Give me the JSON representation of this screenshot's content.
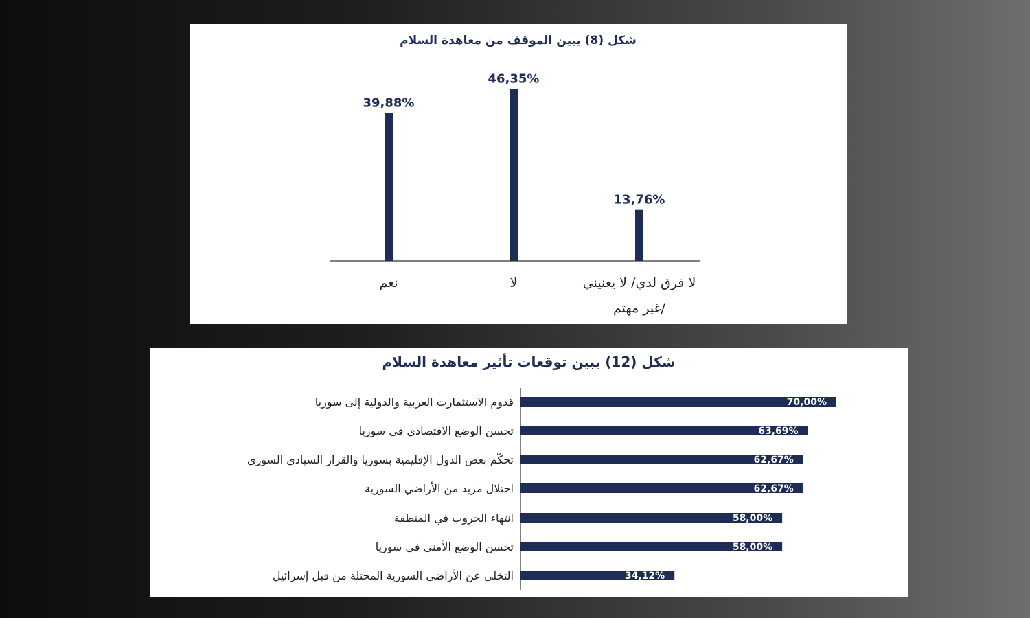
{
  "colors": {
    "bar": "#1e2d55",
    "axis": "#555555",
    "text": "#1e2d55",
    "label": "#222222",
    "barText": "#ffffff"
  },
  "chart_data": [
    {
      "type": "bar",
      "orientation": "vertical",
      "title": "شكل (8) يبين الموقف من معاهدة السلام",
      "categories": [
        "نعم",
        "لا",
        "لا فرق لدي/ لا يعنيني /غير مهتم"
      ],
      "category_label_lines": [
        [
          "نعم"
        ],
        [
          "لا"
        ],
        [
          "لا فرق لدي/ لا يعنيني",
          "/غير مهتم"
        ]
      ],
      "values": [
        39.88,
        46.35,
        13.76
      ],
      "data_labels": [
        "39,88%",
        "46,35%",
        "13,76%"
      ],
      "unit": "%",
      "ylim": [
        0,
        50
      ],
      "grid": false,
      "legend": "none"
    },
    {
      "type": "bar",
      "orientation": "horizontal",
      "title": "شكل (12) يبين توقعات تأثير معاهدة السلام",
      "categories": [
        "قدوم الاستثمارت العربية والدولية إلى سوريا",
        "تحسن الوضع الاقتصادي في سوريا",
        "تحكّم بعض الدول الإقليمية بسوريا والقرار السيادي السوري",
        "احتلال مزيد من الأراضي السورية",
        "انتهاء الحروب في المنطقة",
        "تحسن الوضع الأمني في سوريا",
        "التخلي عن الأراضي السورية المحتلة من قبل إسرائيل"
      ],
      "values": [
        70.0,
        63.69,
        62.67,
        62.67,
        58.0,
        58.0,
        34.12
      ],
      "data_labels": [
        "70,00%",
        "63,69%",
        "62,67%",
        "62,67%",
        "58,00%",
        "58,00%",
        "34,12%"
      ],
      "unit": "%",
      "xlim": [
        0,
        70
      ],
      "grid": false,
      "legend": "none"
    }
  ]
}
